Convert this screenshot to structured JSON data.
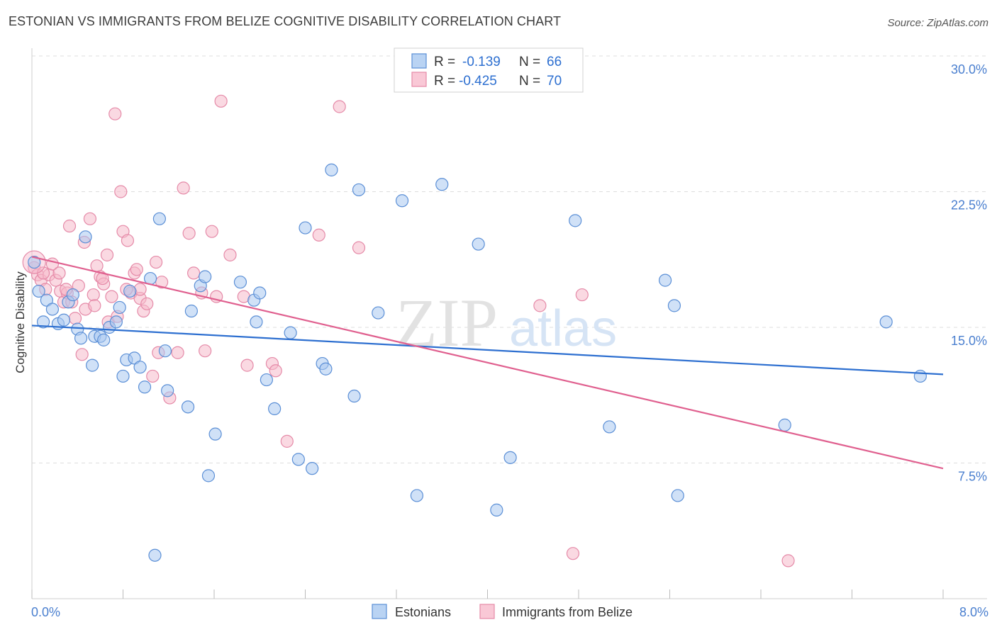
{
  "title": "ESTONIAN VS IMMIGRANTS FROM BELIZE COGNITIVE DISABILITY CORRELATION CHART",
  "source": "Source: ZipAtlas.com",
  "watermark": {
    "zip": "ZIP",
    "atlas": "atlas"
  },
  "colors": {
    "blue_fill": "#a9c8f0",
    "blue_stroke": "#5b8fd6",
    "blue_line": "#2d6fd0",
    "pink_fill": "#f6b9cb",
    "pink_stroke": "#e58aa8",
    "pink_line": "#e0608f",
    "axis_text": "#4a7fcf",
    "grid": "#dddddd"
  },
  "legend_top": [
    {
      "r_label": "R =",
      "r_value": "-0.139",
      "n_label": "N =",
      "n_value": "66"
    },
    {
      "r_label": "R =",
      "r_value": "-0.425",
      "n_label": "N =",
      "n_value": "70"
    }
  ],
  "chart_data": {
    "type": "scatter",
    "title": "ESTONIAN VS IMMIGRANTS FROM BELIZE COGNITIVE DISABILITY CORRELATION CHART",
    "xlabel": "",
    "ylabel": "Cognitive Disability",
    "xlim": [
      0.0,
      8.0
    ],
    "ylim": [
      0.0,
      30.0
    ],
    "x_tick_labels": [
      "0.0%",
      "8.0%"
    ],
    "y_tick_values": [
      7.5,
      15.0,
      22.5,
      30.0
    ],
    "y_tick_labels": [
      "7.5%",
      "15.0%",
      "22.5%",
      "30.0%"
    ],
    "grid": true,
    "legend_position": "top-center",
    "series": [
      {
        "name": "Estonians",
        "trend": [
          [
            0.0,
            15.1
          ],
          [
            8.0,
            12.4
          ]
        ],
        "points": [
          [
            0.02,
            18.6
          ],
          [
            0.06,
            17.0
          ],
          [
            0.1,
            15.3
          ],
          [
            0.13,
            16.5
          ],
          [
            0.18,
            16.0
          ],
          [
            0.23,
            15.2
          ],
          [
            0.28,
            15.4
          ],
          [
            0.32,
            16.4
          ],
          [
            0.36,
            16.8
          ],
          [
            0.4,
            14.9
          ],
          [
            0.43,
            14.4
          ],
          [
            0.47,
            20.0
          ],
          [
            0.53,
            12.9
          ],
          [
            0.55,
            14.5
          ],
          [
            0.6,
            14.5
          ],
          [
            0.63,
            14.3
          ],
          [
            0.68,
            15.0
          ],
          [
            0.74,
            15.3
          ],
          [
            0.77,
            16.1
          ],
          [
            0.8,
            12.3
          ],
          [
            0.83,
            13.2
          ],
          [
            0.86,
            17.0
          ],
          [
            0.9,
            13.3
          ],
          [
            0.95,
            12.8
          ],
          [
            0.99,
            11.7
          ],
          [
            1.04,
            17.7
          ],
          [
            1.12,
            21.0
          ],
          [
            1.17,
            13.7
          ],
          [
            1.19,
            11.5
          ],
          [
            1.37,
            10.6
          ],
          [
            1.4,
            15.9
          ],
          [
            1.48,
            17.3
          ],
          [
            1.52,
            17.8
          ],
          [
            1.61,
            9.1
          ],
          [
            1.83,
            17.5
          ],
          [
            1.95,
            16.5
          ],
          [
            1.97,
            15.3
          ],
          [
            2.0,
            16.9
          ],
          [
            2.06,
            12.1
          ],
          [
            2.13,
            10.5
          ],
          [
            2.27,
            14.7
          ],
          [
            2.34,
            7.7
          ],
          [
            2.4,
            20.5
          ],
          [
            2.46,
            7.2
          ],
          [
            2.55,
            13.0
          ],
          [
            2.58,
            12.7
          ],
          [
            2.63,
            23.7
          ],
          [
            2.83,
            11.2
          ],
          [
            2.87,
            22.6
          ],
          [
            3.04,
            15.8
          ],
          [
            3.25,
            22.0
          ],
          [
            3.38,
            5.7
          ],
          [
            3.6,
            22.9
          ],
          [
            3.92,
            19.6
          ],
          [
            4.08,
            4.9
          ],
          [
            4.2,
            7.8
          ],
          [
            4.77,
            20.9
          ],
          [
            5.07,
            9.5
          ],
          [
            5.56,
            17.6
          ],
          [
            5.64,
            16.2
          ],
          [
            5.67,
            5.7
          ],
          [
            6.61,
            9.6
          ],
          [
            7.5,
            15.3
          ],
          [
            7.8,
            12.3
          ],
          [
            1.08,
            2.4
          ],
          [
            1.55,
            6.8
          ]
        ]
      },
      {
        "name": "Immigrants from Belize",
        "trend": [
          [
            0.0,
            18.9
          ],
          [
            8.0,
            7.2
          ]
        ],
        "points": [
          [
            0.02,
            18.3
          ],
          [
            0.05,
            17.9
          ],
          [
            0.08,
            17.6
          ],
          [
            0.12,
            17.1
          ],
          [
            0.15,
            17.9
          ],
          [
            0.18,
            18.5
          ],
          [
            0.21,
            17.6
          ],
          [
            0.25,
            17.0
          ],
          [
            0.28,
            16.4
          ],
          [
            0.31,
            16.9
          ],
          [
            0.35,
            16.4
          ],
          [
            0.38,
            15.5
          ],
          [
            0.41,
            17.3
          ],
          [
            0.44,
            13.5
          ],
          [
            0.47,
            16.0
          ],
          [
            0.51,
            21.0
          ],
          [
            0.54,
            16.8
          ],
          [
            0.57,
            18.4
          ],
          [
            0.6,
            17.8
          ],
          [
            0.63,
            17.4
          ],
          [
            0.67,
            15.3
          ],
          [
            0.7,
            16.7
          ],
          [
            0.73,
            26.8
          ],
          [
            0.75,
            15.6
          ],
          [
            0.78,
            22.5
          ],
          [
            0.8,
            20.3
          ],
          [
            0.84,
            19.8
          ],
          [
            0.87,
            16.9
          ],
          [
            0.9,
            18.0
          ],
          [
            0.92,
            18.2
          ],
          [
            0.95,
            16.6
          ],
          [
            0.98,
            15.9
          ],
          [
            1.01,
            16.3
          ],
          [
            1.06,
            12.3
          ],
          [
            1.09,
            18.6
          ],
          [
            1.14,
            17.5
          ],
          [
            1.21,
            11.1
          ],
          [
            1.28,
            13.6
          ],
          [
            1.33,
            22.7
          ],
          [
            1.38,
            20.2
          ],
          [
            1.42,
            18.0
          ],
          [
            1.49,
            16.9
          ],
          [
            1.52,
            13.7
          ],
          [
            1.58,
            20.3
          ],
          [
            1.62,
            16.7
          ],
          [
            1.66,
            27.5
          ],
          [
            1.74,
            19.0
          ],
          [
            1.86,
            16.7
          ],
          [
            1.89,
            12.9
          ],
          [
            2.11,
            13.0
          ],
          [
            2.14,
            12.6
          ],
          [
            2.24,
            8.7
          ],
          [
            2.52,
            20.1
          ],
          [
            2.7,
            27.2
          ],
          [
            2.87,
            19.4
          ],
          [
            4.46,
            16.2
          ],
          [
            4.75,
            2.5
          ],
          [
            4.83,
            16.8
          ],
          [
            6.64,
            2.1
          ],
          [
            0.1,
            18.0
          ],
          [
            0.33,
            20.6
          ],
          [
            0.46,
            19.7
          ],
          [
            0.62,
            17.7
          ],
          [
            0.83,
            17.1
          ],
          [
            0.95,
            17.1
          ],
          [
            1.11,
            13.6
          ],
          [
            0.3,
            17.1
          ],
          [
            0.24,
            18.0
          ],
          [
            0.55,
            16.2
          ],
          [
            0.66,
            19.0
          ]
        ]
      }
    ]
  },
  "legend_bottom": [
    {
      "label": "Estonians"
    },
    {
      "label": "Immigrants from Belize"
    }
  ]
}
